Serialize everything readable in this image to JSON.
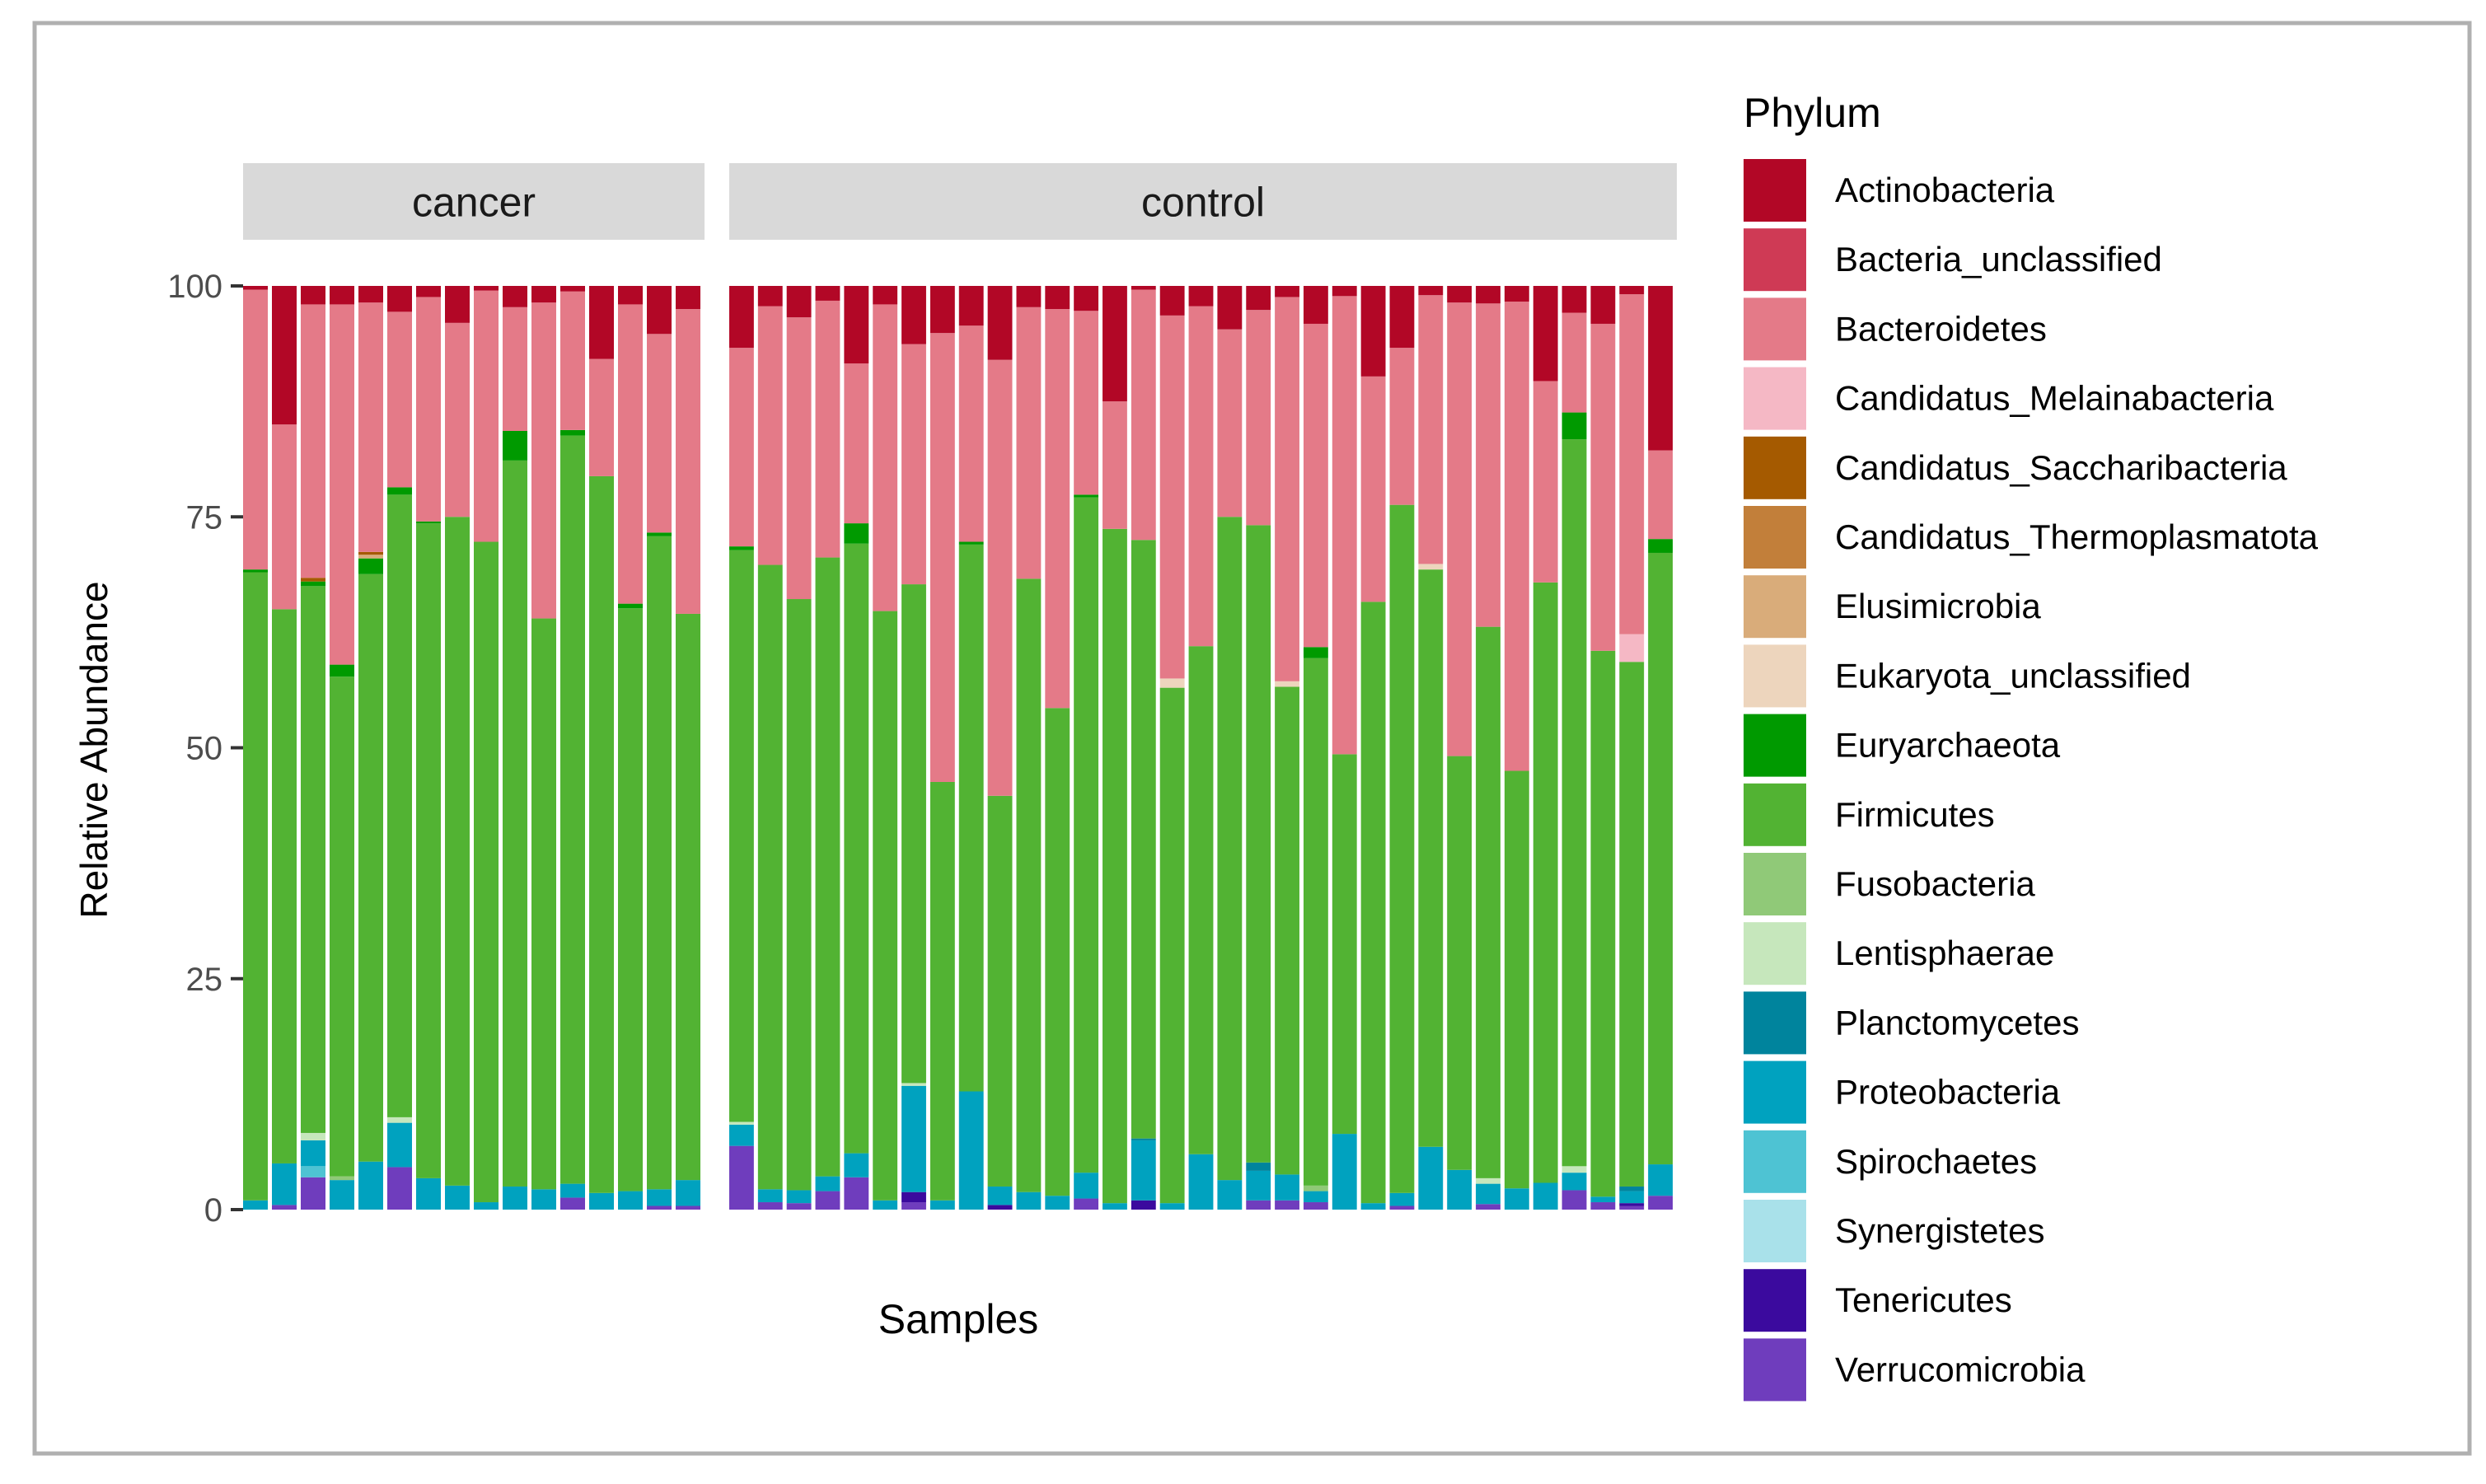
{
  "chart_data": {
    "type": "bar",
    "stacked": true,
    "ylabel": "Relative Abundance",
    "xlabel": "Samples",
    "ylim": [
      0,
      100
    ],
    "yticks": [
      "0",
      "25",
      "50",
      "75",
      "100"
    ],
    "legend_title": "Phylum",
    "legend_position": "right",
    "phyla": [
      {
        "name": "Verrucomicrobia",
        "color": "#6f3dbd"
      },
      {
        "name": "Tenericutes",
        "color": "#3b0a9e"
      },
      {
        "name": "Synergistetes",
        "color": "#a9e1ea"
      },
      {
        "name": "Spirochaetes",
        "color": "#4ec3d3"
      },
      {
        "name": "Proteobacteria",
        "color": "#00a2bf"
      },
      {
        "name": "Planctomycetes",
        "color": "#00849d"
      },
      {
        "name": "Lentisphaerae",
        "color": "#c6e7bc"
      },
      {
        "name": "Fusobacteria",
        "color": "#90c978"
      },
      {
        "name": "Firmicutes",
        "color": "#52b333"
      },
      {
        "name": "Euryarchaeota",
        "color": "#009a00"
      },
      {
        "name": "Eukaryota_unclassified",
        "color": "#edd5bd"
      },
      {
        "name": "Elusimicrobia",
        "color": "#d9ac7a"
      },
      {
        "name": "Candidatus_Thermoplasmatota",
        "color": "#c27f3a"
      },
      {
        "name": "Candidatus_Saccharibacteria",
        "color": "#a55a00"
      },
      {
        "name": "Candidatus_Melainabacteria",
        "color": "#f5b8c5"
      },
      {
        "name": "Bacteroidetes",
        "color": "#e47a88"
      },
      {
        "name": "Bacteria_unclassified",
        "color": "#cf3a55"
      },
      {
        "name": "Actinobacteria",
        "color": "#b20726"
      }
    ],
    "legend_order": [
      "Actinobacteria",
      "Bacteria_unclassified",
      "Bacteroidetes",
      "Candidatus_Melainabacteria",
      "Candidatus_Saccharibacteria",
      "Candidatus_Thermoplasmatota",
      "Elusimicrobia",
      "Eukaryota_unclassified",
      "Euryarchaeota",
      "Firmicutes",
      "Fusobacteria",
      "Lentisphaerae",
      "Planctomycetes",
      "Proteobacteria",
      "Spirochaetes",
      "Synergistetes",
      "Tenericutes",
      "Verrucomicrobia"
    ],
    "facets": [
      {
        "label": "cancer",
        "samples": [
          {
            "Proteobacteria": 1,
            "Firmicutes": 68,
            "Euryarchaeota": 0.3,
            "Bacteroidetes": 30.3,
            "Actinobacteria": 0.4
          },
          {
            "Verrucomicrobia": 0.5,
            "Proteobacteria": 4.5,
            "Firmicutes": 60,
            "Bacteroidetes": 20,
            "Actinobacteria": 15
          },
          {
            "Verrucomicrobia": 3.5,
            "Spirochaetes": 1.2,
            "Proteobacteria": 2.8,
            "Lentisphaerae": 0.8,
            "Firmicutes": 59.2,
            "Euryarchaeota": 0.5,
            "Candidatus_Saccharibacteria": 0.4,
            "Bacteroidetes": 29.6,
            "Actinobacteria": 2
          },
          {
            "Fusobacteria": 0.4,
            "Proteobacteria": 3.2,
            "Firmicutes": 54.1,
            "Euryarchaeota": 1.3,
            "Bacteroidetes": 39,
            "Actinobacteria": 2
          },
          {
            "Proteobacteria": 5.2,
            "Firmicutes": 63.6,
            "Euryarchaeota": 1.7,
            "Candidatus_Saccharibacteria": 0.3,
            "Elusimicrobia": 0.4,
            "Bacteroidetes": 27,
            "Actinobacteria": 1.8
          },
          {
            "Verrucomicrobia": 4.6,
            "Proteobacteria": 4.8,
            "Lentisphaerae": 0.6,
            "Firmicutes": 67.4,
            "Euryarchaeota": 0.8,
            "Bacteroidetes": 19,
            "Actinobacteria": 2.8
          },
          {
            "Proteobacteria": 3.4,
            "Firmicutes": 70.9,
            "Euryarchaeota": 0.2,
            "Bacteroidetes": 24.3,
            "Actinobacteria": 1.2
          },
          {
            "Proteobacteria": 2.6,
            "Firmicutes": 72.4,
            "Bacteroidetes": 21,
            "Actinobacteria": 4
          },
          {
            "Proteobacteria": 0.8,
            "Firmicutes": 71.5,
            "Bacteroidetes": 27.2,
            "Actinobacteria": 0.5
          },
          {
            "Proteobacteria": 2.5,
            "Firmicutes": 78.6,
            "Euryarchaeota": 3.2,
            "Bacteroidetes": 13.4,
            "Actinobacteria": 2.3
          },
          {
            "Proteobacteria": 2.2,
            "Firmicutes": 61.8,
            "Bacteroidetes": 34.2,
            "Actinobacteria": 1.8
          },
          {
            "Verrucomicrobia": 1.3,
            "Proteobacteria": 1.5,
            "Firmicutes": 81,
            "Euryarchaeota": 0.6,
            "Bacteroidetes": 15,
            "Actinobacteria": 0.6
          },
          {
            "Proteobacteria": 1.8,
            "Firmicutes": 77.6,
            "Bacteroidetes": 12.7,
            "Actinobacteria": 7.9
          },
          {
            "Proteobacteria": 2,
            "Firmicutes": 63.1,
            "Euryarchaeota": 0.5,
            "Bacteroidetes": 32.4,
            "Actinobacteria": 2
          },
          {
            "Verrucomicrobia": 0.4,
            "Proteobacteria": 1.8,
            "Firmicutes": 70.7,
            "Euryarchaeota": 0.4,
            "Bacteroidetes": 21.5,
            "Actinobacteria": 5.2
          },
          {
            "Verrucomicrobia": 0.4,
            "Proteobacteria": 2.8,
            "Firmicutes": 61.3,
            "Bacteroidetes": 33,
            "Actinobacteria": 2.5
          }
        ]
      },
      {
        "label": "control",
        "samples": [
          {
            "Verrucomicrobia": 6.9,
            "Proteobacteria": 2.3,
            "Lentisphaerae": 0.3,
            "Firmicutes": 61.9,
            "Euryarchaeota": 0.4,
            "Bacteroidetes": 21.5,
            "Actinobacteria": 6.7
          },
          {
            "Verrucomicrobia": 0.8,
            "Proteobacteria": 1.4,
            "Firmicutes": 67.6,
            "Bacteroidetes": 28,
            "Actinobacteria": 2.2
          },
          {
            "Verrucomicrobia": 0.7,
            "Proteobacteria": 1.4,
            "Firmicutes": 64,
            "Bacteroidetes": 30.5,
            "Actinobacteria": 3.4
          },
          {
            "Verrucomicrobia": 2,
            "Proteobacteria": 1.6,
            "Firmicutes": 67,
            "Bacteroidetes": 27.8,
            "Actinobacteria": 1.6
          },
          {
            "Verrucomicrobia": 3.5,
            "Proteobacteria": 2.6,
            "Firmicutes": 66,
            "Euryarchaeota": 2.2,
            "Bacteroidetes": 17.3,
            "Actinobacteria": 8.4
          },
          {
            "Proteobacteria": 1,
            "Firmicutes": 63.8,
            "Bacteroidetes": 33.2,
            "Actinobacteria": 2
          },
          {
            "Verrucomicrobia": 0.8,
            "Tenericutes": 1.1,
            "Proteobacteria": 11.5,
            "Lentisphaerae": 0.3,
            "Firmicutes": 54,
            "Bacteroidetes": 26,
            "Actinobacteria": 6.3
          },
          {
            "Proteobacteria": 1,
            "Firmicutes": 45.3,
            "Bacteroidetes": 48.6,
            "Actinobacteria": 5.1
          },
          {
            "Proteobacteria": 12.8,
            "Firmicutes": 59.2,
            "Euryarchaeota": 0.3,
            "Bacteroidetes": 23.4,
            "Actinobacteria": 4.3
          },
          {
            "Tenericutes": 0.5,
            "Proteobacteria": 2,
            "Firmicutes": 42.3,
            "Bacteroidetes": 47.2,
            "Actinobacteria": 8
          },
          {
            "Proteobacteria": 1.9,
            "Firmicutes": 66.4,
            "Bacteroidetes": 29.4,
            "Actinobacteria": 2.3
          },
          {
            "Proteobacteria": 1.5,
            "Firmicutes": 52.8,
            "Bacteroidetes": 43.2,
            "Actinobacteria": 2.5
          },
          {
            "Verrucomicrobia": 1.2,
            "Proteobacteria": 2.8,
            "Firmicutes": 73.1,
            "Euryarchaeota": 0.3,
            "Bacteroidetes": 19.9,
            "Actinobacteria": 2.7
          },
          {
            "Proteobacteria": 0.7,
            "Firmicutes": 73,
            "Bacteroidetes": 13.8,
            "Actinobacteria": 12.5
          },
          {
            "Tenericutes": 1,
            "Proteobacteria": 6.5,
            "Planctomycetes": 0.2,
            "Firmicutes": 64.8,
            "Bacteroidetes": 27.1,
            "Actinobacteria": 0.4
          },
          {
            "Proteobacteria": 0.7,
            "Firmicutes": 55.8,
            "Eukaryota_unclassified": 1,
            "Bacteroidetes": 39.3,
            "Actinobacteria": 3.2
          },
          {
            "Proteobacteria": 6,
            "Firmicutes": 55,
            "Bacteroidetes": 36.8,
            "Actinobacteria": 2.2
          },
          {
            "Proteobacteria": 3.2,
            "Firmicutes": 71.8,
            "Bacteroidetes": 20.3,
            "Actinobacteria": 4.7
          },
          {
            "Verrucomicrobia": 1,
            "Proteobacteria": 3.2,
            "Planctomycetes": 0.9,
            "Firmicutes": 69,
            "Bacteroidetes": 23.3,
            "Actinobacteria": 2.6
          },
          {
            "Verrucomicrobia": 1,
            "Proteobacteria": 2.8,
            "Firmicutes": 52.8,
            "Eukaryota_unclassified": 0.6,
            "Bacteroidetes": 41.6,
            "Actinobacteria": 1.2
          },
          {
            "Verrucomicrobia": 0.8,
            "Proteobacteria": 1.2,
            "Fusobacteria": 0.6,
            "Firmicutes": 57.1,
            "Euryarchaeota": 1.2,
            "Bacteroidetes": 35,
            "Actinobacteria": 4.1
          },
          {
            "Proteobacteria": 8.2,
            "Firmicutes": 41.1,
            "Bacteroidetes": 49.6,
            "Actinobacteria": 1.1
          },
          {
            "Proteobacteria": 0.7,
            "Firmicutes": 65.1,
            "Bacteroidetes": 24.4,
            "Actinobacteria": 9.8
          },
          {
            "Verrucomicrobia": 0.4,
            "Proteobacteria": 1.4,
            "Firmicutes": 74.5,
            "Bacteroidetes": 17,
            "Actinobacteria": 6.7
          },
          {
            "Proteobacteria": 6.8,
            "Firmicutes": 62.5,
            "Eukaryota_unclassified": 0.6,
            "Bacteroidetes": 29.1,
            "Actinobacteria": 1
          },
          {
            "Proteobacteria": 4.3,
            "Firmicutes": 44.8,
            "Bacteroidetes": 49.1,
            "Actinobacteria": 1.8
          },
          {
            "Verrucomicrobia": 0.6,
            "Proteobacteria": 2.2,
            "Lentisphaerae": 0.6,
            "Firmicutes": 59.7,
            "Bacteroidetes": 35,
            "Actinobacteria": 1.9
          },
          {
            "Proteobacteria": 2.3,
            "Firmicutes": 45.2,
            "Bacteroidetes": 50.8,
            "Actinobacteria": 1.7
          },
          {
            "Proteobacteria": 2.9,
            "Firmicutes": 65,
            "Bacteroidetes": 21.8,
            "Actinobacteria": 10.3
          },
          {
            "Verrucomicrobia": 2.1,
            "Proteobacteria": 1.9,
            "Lentisphaerae": 0.7,
            "Firmicutes": 78.7,
            "Euryarchaeota": 2.9,
            "Bacteroidetes": 10.8,
            "Actinobacteria": 2.9
          },
          {
            "Verrucomicrobia": 0.8,
            "Proteobacteria": 0.6,
            "Firmicutes": 59.1,
            "Bacteroidetes": 35.4,
            "Actinobacteria": 4.1
          },
          {
            "Verrucomicrobia": 0.4,
            "Tenericutes": 0.3,
            "Proteobacteria": 1.3,
            "Planctomycetes": 0.5,
            "Firmicutes": 56.8,
            "Candidatus_Melainabacteria": 3,
            "Bacteroidetes": 36.8,
            "Actinobacteria": 0.9
          },
          {
            "Verrucomicrobia": 1.5,
            "Proteobacteria": 3.4,
            "Firmicutes": 66.2,
            "Euryarchaeota": 1.5,
            "Bacteroidetes": 9.6,
            "Actinobacteria": 17.8
          }
        ]
      }
    ]
  }
}
